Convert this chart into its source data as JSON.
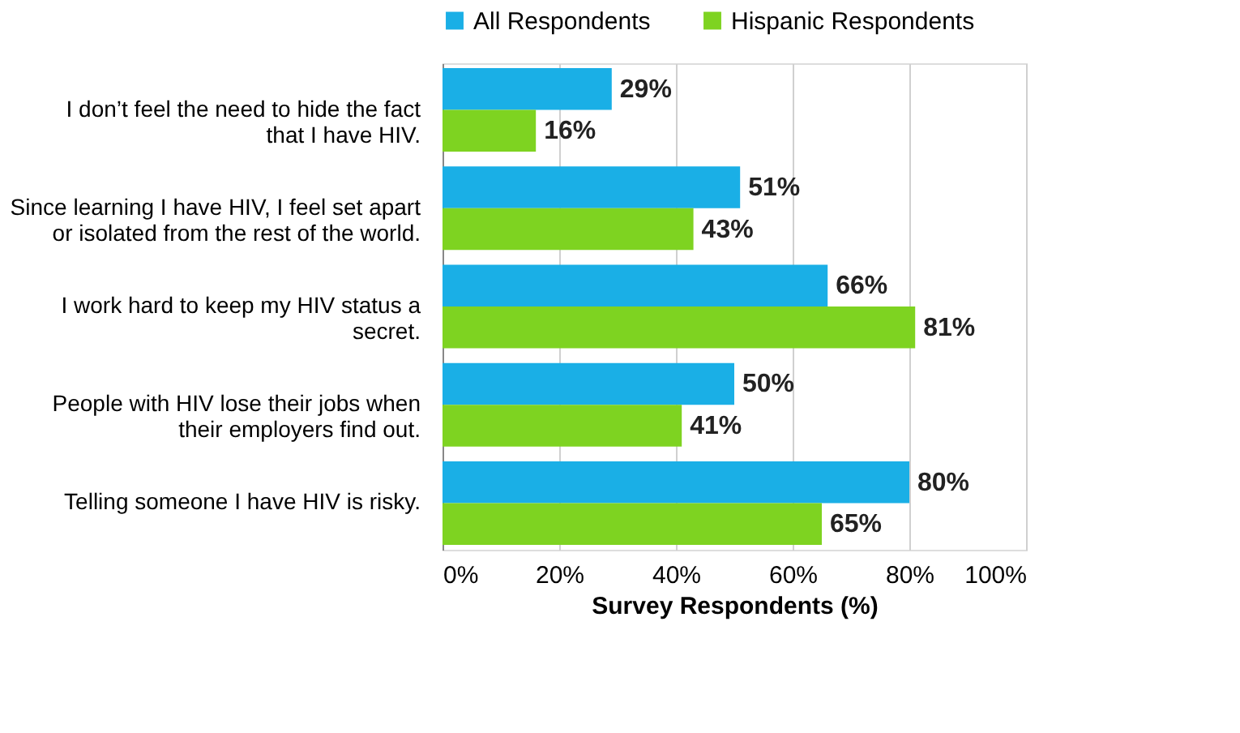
{
  "chart_data": {
    "type": "bar",
    "orientation": "horizontal",
    "categories": [
      "I don’t feel the need to hide the fact\nthat I have HIV.",
      "Since learning I have HIV, I feel set apart\nor isolated from the rest of the world.",
      "I work hard to keep my HIV status a\nsecret.",
      "People with HIV lose their jobs when\ntheir employers find out.",
      "Telling someone I have HIV is risky."
    ],
    "series": [
      {
        "name": "All Respondents",
        "color": "#1aafe6",
        "values": [
          29,
          51,
          66,
          50,
          80
        ],
        "value_labels": [
          "29%",
          "51%",
          "66%",
          "50%",
          "80%"
        ]
      },
      {
        "name": "Hispanic Respondents",
        "color": "#7ed321",
        "values": [
          16,
          43,
          81,
          41,
          65
        ],
        "value_labels": [
          "16%",
          "43%",
          "81%",
          "41%",
          "65%"
        ]
      }
    ],
    "xlabel": "Survey Respondents (%)",
    "xlim": [
      0,
      100
    ],
    "xticks": [
      {
        "value": 0,
        "label": "0%"
      },
      {
        "value": 20,
        "label": "20%"
      },
      {
        "value": 40,
        "label": "40%"
      },
      {
        "value": 60,
        "label": "60%"
      },
      {
        "value": 80,
        "label": "80%"
      },
      {
        "value": 100,
        "label": "100%"
      }
    ],
    "grid": "x",
    "legend": "top"
  }
}
